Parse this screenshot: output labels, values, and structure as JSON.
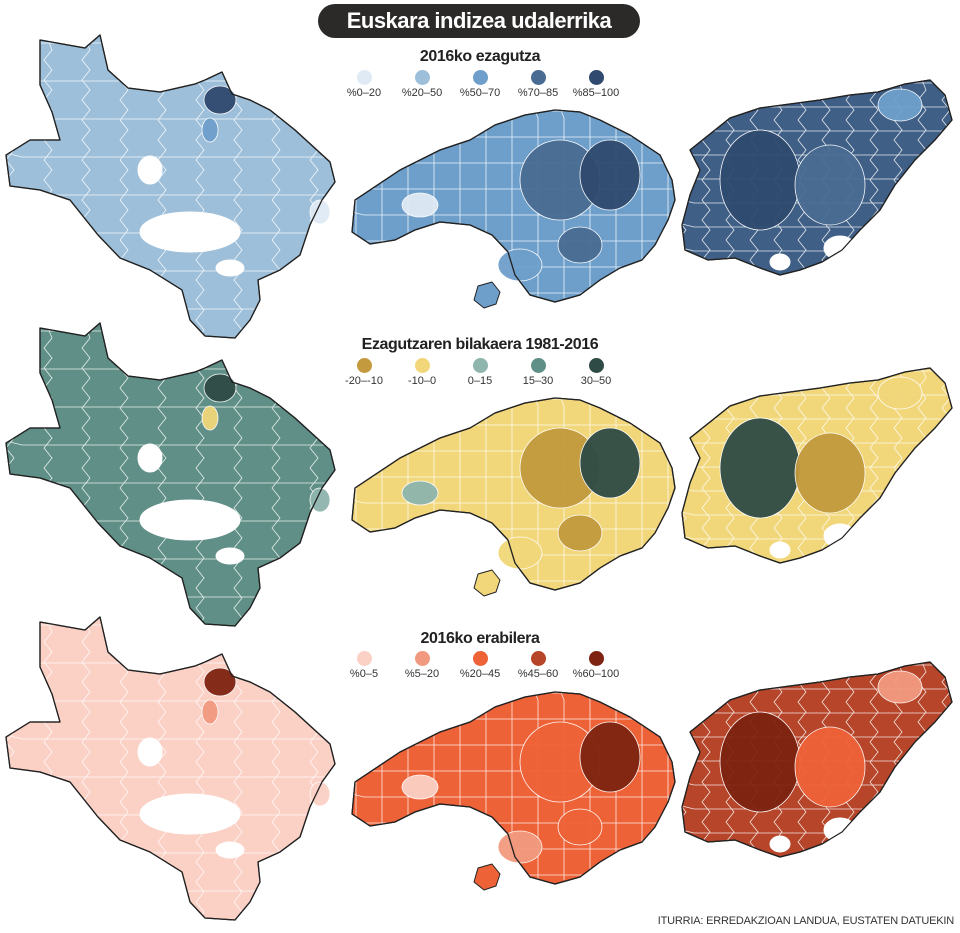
{
  "header": {
    "title": "Euskara indizea udalerrika"
  },
  "panels": [
    {
      "id": "knowledge",
      "title": "2016ko ezagutza",
      "legend": [
        {
          "label": "%0–20",
          "color": "#dfeaf5"
        },
        {
          "label": "%20–50",
          "color": "#9dbfd9"
        },
        {
          "label": "%50–70",
          "color": "#6e9fcb"
        },
        {
          "label": "%70–85",
          "color": "#4a6c93"
        },
        {
          "label": "%85–100",
          "color": "#2f4a6e"
        }
      ],
      "region_colors": {
        "araba": "#9dbfd9",
        "bizkaia": "#6e9fcb",
        "gipuzkoa": "#3f5f86"
      },
      "accent_colors": [
        "#2f4a6e",
        "#6e9fcb",
        "#dfeaf5",
        "#4a6c93"
      ]
    },
    {
      "id": "change",
      "title": "Ezagutzaren bilakaera 1981-2016",
      "legend": [
        {
          "label": "-20–-10",
          "color": "#c39a3e"
        },
        {
          "label": "-10–0",
          "color": "#f1d77a"
        },
        {
          "label": "0–15",
          "color": "#8fb5ad"
        },
        {
          "label": "15–30",
          "color": "#5f8f86"
        },
        {
          "label": "30–50",
          "color": "#2f4b45"
        }
      ],
      "region_colors": {
        "araba": "#5f8f86",
        "bizkaia": "#f1d77a",
        "gipuzkoa": "#f1d77a"
      },
      "accent_colors": [
        "#2f4b45",
        "#f1d77a",
        "#8fb5ad",
        "#c39a3e"
      ]
    },
    {
      "id": "usage",
      "title": "2016ko erabilera",
      "legend": [
        {
          "label": "%0–5",
          "color": "#fbd0c5"
        },
        {
          "label": "%5–20",
          "color": "#f29a80"
        },
        {
          "label": "%20–45",
          "color": "#ee6238"
        },
        {
          "label": "%45–60",
          "color": "#b6452a"
        },
        {
          "label": "%60–100",
          "color": "#7e2311"
        }
      ],
      "region_colors": {
        "araba": "#fbd0c5",
        "bizkaia": "#ee6238",
        "gipuzkoa": "#b6452a"
      },
      "accent_colors": [
        "#7e2311",
        "#f29a80",
        "#fbd0c5",
        "#ee6238"
      ]
    }
  ],
  "footer": {
    "source": "ITURRIA: ERREDAKZIOAN LANDUA, EUSTATEN DATUEKIN"
  }
}
